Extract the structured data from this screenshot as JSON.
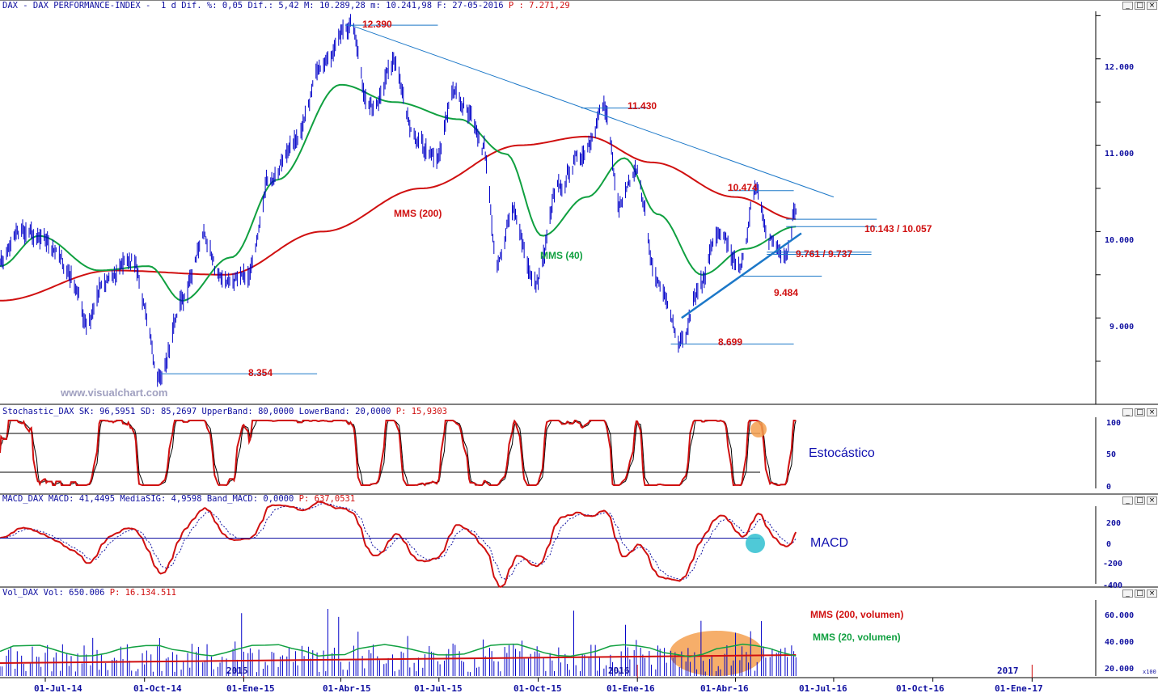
{
  "header": {
    "ticker": "DAX - DAX PERFORMANCE-INDEX -",
    "stats": "1 d Dif. %: 0,05 Dif.: 5,42 M: 10.289,28 m: 10.241,98 F: 27-05-2016",
    "last": "P : 7.271,29"
  },
  "watermark": "www.visualchart.com",
  "window_buttons": [
    "_",
    "□",
    "×"
  ],
  "price_panel": {
    "y_ticks": [
      "12.000",
      "11.000",
      "10.000",
      "9.000"
    ],
    "levels": [
      {
        "label": "12.390"
      },
      {
        "label": "11.430"
      },
      {
        "label": "10.474"
      },
      {
        "label": "10.143 / 10.057"
      },
      {
        "label": "9.761 / 9.737"
      },
      {
        "label": "9.484"
      },
      {
        "label": "8.699"
      },
      {
        "label": "8.354"
      }
    ],
    "ma_labels": {
      "mms200": "MMS (200)",
      "mms40": "MMS (40)"
    }
  },
  "stoch_panel": {
    "header": "Stochastic_DAX SK: 96,5951 SD: 85,2697 UpperBand: 80,0000 LowerBand: 20,0000",
    "header_p": "P: 15,9303",
    "title": "Estocástico",
    "y_ticks": [
      "100",
      "50",
      "0"
    ]
  },
  "macd_panel": {
    "header": "MACD_DAX MACD: 41,4495 MediaSIG: 4,9598 Band_MACD: 0,0000",
    "header_p": "P: 637,0531",
    "title": "MACD",
    "y_ticks": [
      "200",
      "0",
      "-200",
      "-400"
    ]
  },
  "vol_panel": {
    "header": "Vol_DAX Vol: 650.006",
    "header_p": "P: 16.134.511",
    "labels": {
      "mms200": "MMS (200, volumen)",
      "mms20": "MMS (20, volumen)"
    },
    "y_ticks": [
      "60.000",
      "40.000",
      "20.000"
    ],
    "year_marks": [
      "2015",
      "2016",
      "2017"
    ],
    "scale_note": "x100"
  },
  "x_axis": {
    "ticks": [
      "01-Jul-14",
      "01-Oct-14",
      "01-Ene-15",
      "01-Abr-15",
      "01-Jul-15",
      "01-Oct-15",
      "01-Ene-16",
      "01-Abr-16",
      "01-Jul-16",
      "01-Oct-16",
      "01-Ene-17"
    ]
  },
  "colors": {
    "price": "#0000c8",
    "mms200": "#d01010",
    "mms40": "#10a040",
    "trend": "#1c78c8",
    "highlight_orange": "#f5a050",
    "highlight_cyan": "#30c0d0"
  },
  "chart_data": {
    "type": "line",
    "price_anchors": [
      [
        "2014-05-20",
        9700
      ],
      [
        "2014-06-10",
        10000
      ],
      [
        "2014-07-05",
        9850
      ],
      [
        "2014-07-25",
        9500
      ],
      [
        "2014-08-08",
        8950
      ],
      [
        "2014-08-25",
        9400
      ],
      [
        "2014-09-18",
        9700
      ],
      [
        "2014-10-16",
        8354
      ],
      [
        "2014-11-05",
        9200
      ],
      [
        "2014-11-25",
        9950
      ],
      [
        "2014-12-12",
        9400
      ],
      [
        "2015-01-06",
        9500
      ],
      [
        "2015-01-25",
        10600
      ],
      [
        "2015-02-20",
        11100
      ],
      [
        "2015-03-16",
        12000
      ],
      [
        "2015-04-10",
        12390
      ],
      [
        "2015-04-28",
        11450
      ],
      [
        "2015-05-20",
        11900
      ],
      [
        "2015-06-10",
        11000
      ],
      [
        "2015-06-29",
        10850
      ],
      [
        "2015-07-15",
        11600
      ],
      [
        "2015-07-30",
        11350
      ],
      [
        "2015-08-11",
        11000
      ],
      [
        "2015-08-24",
        9650
      ],
      [
        "2015-09-07",
        10200
      ],
      [
        "2015-09-29",
        9400
      ],
      [
        "2015-10-20",
        10500
      ],
      [
        "2015-11-10",
        10900
      ],
      [
        "2015-12-01",
        11430
      ],
      [
        "2015-12-15",
        10300
      ],
      [
        "2015-12-30",
        10750
      ],
      [
        "2016-01-20",
        9400
      ],
      [
        "2016-02-11",
        8699
      ],
      [
        "2016-03-01",
        9400
      ],
      [
        "2016-03-15",
        10000
      ],
      [
        "2016-04-05",
        9600
      ],
      [
        "2016-04-20",
        10474
      ],
      [
        "2016-05-03",
        9900
      ],
      [
        "2016-05-18",
        9761
      ],
      [
        "2016-05-27",
        10289
      ]
    ],
    "mms200_anchors": [
      [
        "2014-05-20",
        9200
      ],
      [
        "2014-09-01",
        9550
      ],
      [
        "2014-12-15",
        9500
      ],
      [
        "2015-03-15",
        10000
      ],
      [
        "2015-06-15",
        10500
      ],
      [
        "2015-09-15",
        11000
      ],
      [
        "2015-11-15",
        11100
      ],
      [
        "2016-01-15",
        10800
      ],
      [
        "2016-04-01",
        10400
      ],
      [
        "2016-05-27",
        10143
      ]
    ],
    "mms40_anchors": [
      [
        "2014-05-20",
        9600
      ],
      [
        "2014-06-25",
        9950
      ],
      [
        "2014-08-20",
        9550
      ],
      [
        "2014-10-05",
        9600
      ],
      [
        "2014-11-05",
        9200
      ],
      [
        "2014-12-20",
        9700
      ],
      [
        "2015-02-01",
        10600
      ],
      [
        "2015-04-01",
        11700
      ],
      [
        "2015-05-20",
        11500
      ],
      [
        "2015-07-20",
        11300
      ],
      [
        "2015-09-01",
        10900
      ],
      [
        "2015-10-05",
        9950
      ],
      [
        "2015-11-15",
        10400
      ],
      [
        "2015-12-20",
        10850
      ],
      [
        "2016-01-20",
        10200
      ],
      [
        "2016-03-01",
        9500
      ],
      [
        "2016-04-10",
        9800
      ],
      [
        "2016-05-27",
        10057
      ]
    ],
    "resistance_line": [
      [
        "2015-04-10",
        12390
      ],
      [
        "2016-07-01",
        10400
      ]
    ],
    "support_line": [
      [
        "2016-02-11",
        9000
      ],
      [
        "2016-06-01",
        9980
      ]
    ],
    "stoch_band_upper": 80,
    "stoch_band_lower": 20,
    "x_range": [
      "2014-05-20",
      "2017-03-01"
    ],
    "price_range": [
      8000,
      12550
    ],
    "stoch_range": [
      -5,
      105
    ],
    "macd_range": [
      -400,
      280
    ],
    "vol_range": [
      15000,
      72000
    ],
    "vol_mms200_level": 30000,
    "vol_mms20_level": 35000
  }
}
